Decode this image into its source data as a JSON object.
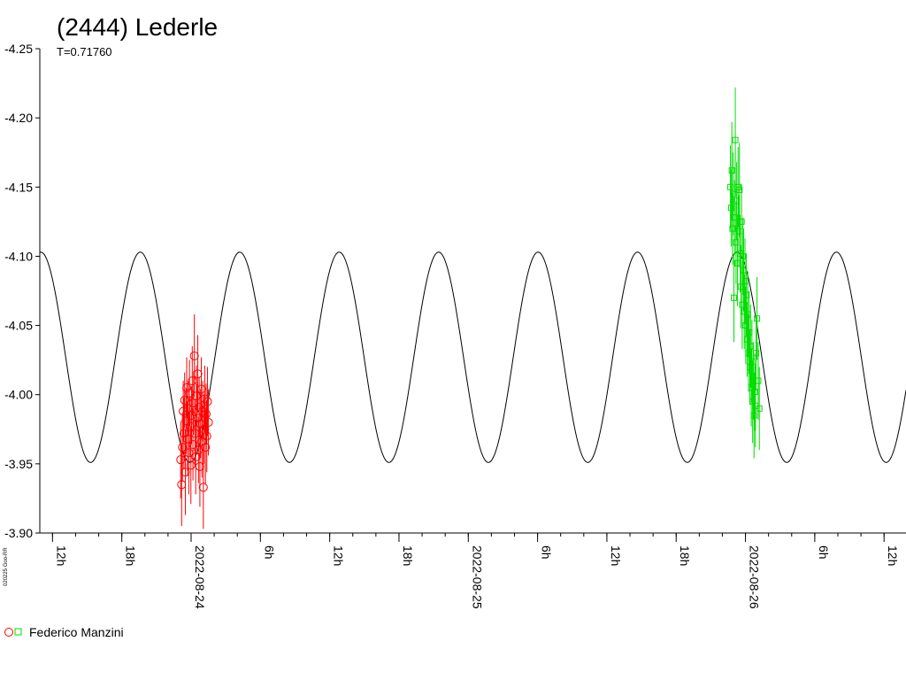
{
  "chart_data": {
    "type": "scatter",
    "title": "(2444) Lederle",
    "subtitle": "T=0.71760",
    "watermark": "020225 Goo-RR",
    "y_axis": {
      "range": [
        -4.25,
        -3.9
      ],
      "inverted": true,
      "ticks": [
        "-4.25",
        "-4.20",
        "-4.15",
        "-4.10",
        "-4.05",
        "-4.00",
        "-3.95",
        "-3.90"
      ],
      "tick_values": [
        -4.25,
        -4.2,
        -4.15,
        -4.1,
        -4.05,
        -4.0,
        -3.95,
        -3.9
      ]
    },
    "x_axis": {
      "unit": "hours from 2022-08-23 00:00",
      "range": [
        10.9,
        85.9
      ],
      "ticks": [
        {
          "label": "12h",
          "value": 12
        },
        {
          "label": "18h",
          "value": 18
        },
        {
          "label": "2022-08-24",
          "value": 24
        },
        {
          "label": "6h",
          "value": 30
        },
        {
          "label": "12h",
          "value": 36
        },
        {
          "label": "18h",
          "value": 42
        },
        {
          "label": "2022-08-25",
          "value": 48
        },
        {
          "label": "6h",
          "value": 54
        },
        {
          "label": "12h",
          "value": 60
        },
        {
          "label": "18h",
          "value": 66
        },
        {
          "label": "2022-08-26",
          "value": 72
        },
        {
          "label": "6h",
          "value": 78
        },
        {
          "label": "12h",
          "value": 84
        }
      ]
    },
    "model_curve": {
      "period_hours": 8.6112,
      "center": -4.027,
      "amplitude": 0.076,
      "peak_hour": 19.6,
      "color": "#000000"
    },
    "series": [
      {
        "name": "Federico Manzini",
        "marker": "circle",
        "color": "#ff0000",
        "x_range": [
          23.1,
          25.5
        ],
        "points": [
          [
            23.1,
            -3.953,
            0.028
          ],
          [
            23.18,
            -3.935,
            0.03
          ],
          [
            23.25,
            -3.962,
            0.025
          ],
          [
            23.32,
            -3.988,
            0.022
          ],
          [
            23.38,
            -3.972,
            0.026
          ],
          [
            23.44,
            -3.996,
            0.02
          ],
          [
            23.5,
            -3.944,
            0.031
          ],
          [
            23.56,
            -3.981,
            0.024
          ],
          [
            23.62,
            -4.005,
            0.022
          ],
          [
            23.68,
            -3.968,
            0.027
          ],
          [
            23.74,
            -3.99,
            0.02
          ],
          [
            23.8,
            -3.958,
            0.03
          ],
          [
            23.86,
            -4.001,
            0.024
          ],
          [
            23.92,
            -3.977,
            0.022
          ],
          [
            23.98,
            -3.949,
            0.028
          ],
          [
            24.04,
            -3.985,
            0.021
          ],
          [
            24.1,
            -4.01,
            0.025
          ],
          [
            24.16,
            -3.964,
            0.026
          ],
          [
            24.22,
            -3.994,
            0.023
          ],
          [
            24.28,
            -4.028,
            0.03
          ],
          [
            24.34,
            -3.972,
            0.024
          ],
          [
            24.4,
            -3.955,
            0.027
          ],
          [
            24.46,
            -3.999,
            0.022
          ],
          [
            24.52,
            -3.983,
            0.025
          ],
          [
            24.58,
            -4.015,
            0.028
          ],
          [
            24.64,
            -3.96,
            0.024
          ],
          [
            24.7,
            -3.991,
            0.022
          ],
          [
            24.76,
            -3.948,
            0.029
          ],
          [
            24.82,
            -3.979,
            0.025
          ],
          [
            24.88,
            -4.004,
            0.023
          ],
          [
            24.94,
            -3.966,
            0.026
          ],
          [
            25.0,
            -3.988,
            0.022
          ],
          [
            25.06,
            -3.933,
            0.03
          ],
          [
            25.12,
            -3.975,
            0.025
          ],
          [
            25.18,
            -3.997,
            0.024
          ],
          [
            25.24,
            -3.962,
            0.027
          ],
          [
            25.3,
            -3.986,
            0.022
          ],
          [
            25.36,
            -3.97,
            0.026
          ],
          [
            25.42,
            -3.995,
            0.025
          ],
          [
            25.5,
            -3.98,
            0.024
          ]
        ]
      },
      {
        "name": "",
        "marker": "square",
        "color": "#00dd00",
        "x_range": [
          70.7,
          73.2
        ],
        "points": [
          [
            70.7,
            -4.15,
            0.03
          ],
          [
            70.76,
            -4.135,
            0.028
          ],
          [
            70.82,
            -4.162,
            0.035
          ],
          [
            70.88,
            -4.12,
            0.026
          ],
          [
            70.94,
            -4.145,
            0.03
          ],
          [
            71.0,
            -4.07,
            0.032
          ],
          [
            71.06,
            -4.128,
            0.027
          ],
          [
            71.12,
            -4.184,
            0.038
          ],
          [
            71.18,
            -4.11,
            0.03
          ],
          [
            71.24,
            -4.14,
            0.028
          ],
          [
            71.3,
            -4.095,
            0.031
          ],
          [
            71.36,
            -4.15,
            0.029
          ],
          [
            71.42,
            -4.118,
            0.026
          ],
          [
            71.48,
            -4.148,
            0.034
          ],
          [
            71.54,
            -4.102,
            0.028
          ],
          [
            71.6,
            -4.078,
            0.03
          ],
          [
            71.66,
            -4.125,
            0.027
          ],
          [
            71.72,
            -4.065,
            0.032
          ],
          [
            71.78,
            -4.1,
            0.028
          ],
          [
            71.84,
            -4.09,
            0.03
          ],
          [
            71.9,
            -4.06,
            0.027
          ],
          [
            71.96,
            -4.082,
            0.031
          ],
          [
            72.02,
            -4.05,
            0.028
          ],
          [
            72.08,
            -4.072,
            0.03
          ],
          [
            72.14,
            -4.04,
            0.027
          ],
          [
            72.2,
            -4.058,
            0.031
          ],
          [
            72.26,
            -4.03,
            0.028
          ],
          [
            72.32,
            -4.045,
            0.03
          ],
          [
            72.38,
            -4.02,
            0.027
          ],
          [
            72.44,
            -4.035,
            0.03
          ],
          [
            72.5,
            -4.005,
            0.028
          ],
          [
            72.56,
            -4.024,
            0.03
          ],
          [
            72.62,
            -3.995,
            0.03
          ],
          [
            72.68,
            -4.01,
            0.028
          ],
          [
            72.74,
            -3.985,
            0.031
          ],
          [
            72.8,
            -4.002,
            0.028
          ],
          [
            72.86,
            -3.992,
            0.03
          ],
          [
            72.92,
            -4.03,
            0.027
          ],
          [
            73.0,
            -4.055,
            0.03
          ],
          [
            73.1,
            -4.01,
            0.028
          ],
          [
            73.2,
            -3.99,
            0.03
          ]
        ]
      }
    ],
    "legend": {
      "placement": "bottom-left",
      "label": "Federico Manzini"
    }
  }
}
